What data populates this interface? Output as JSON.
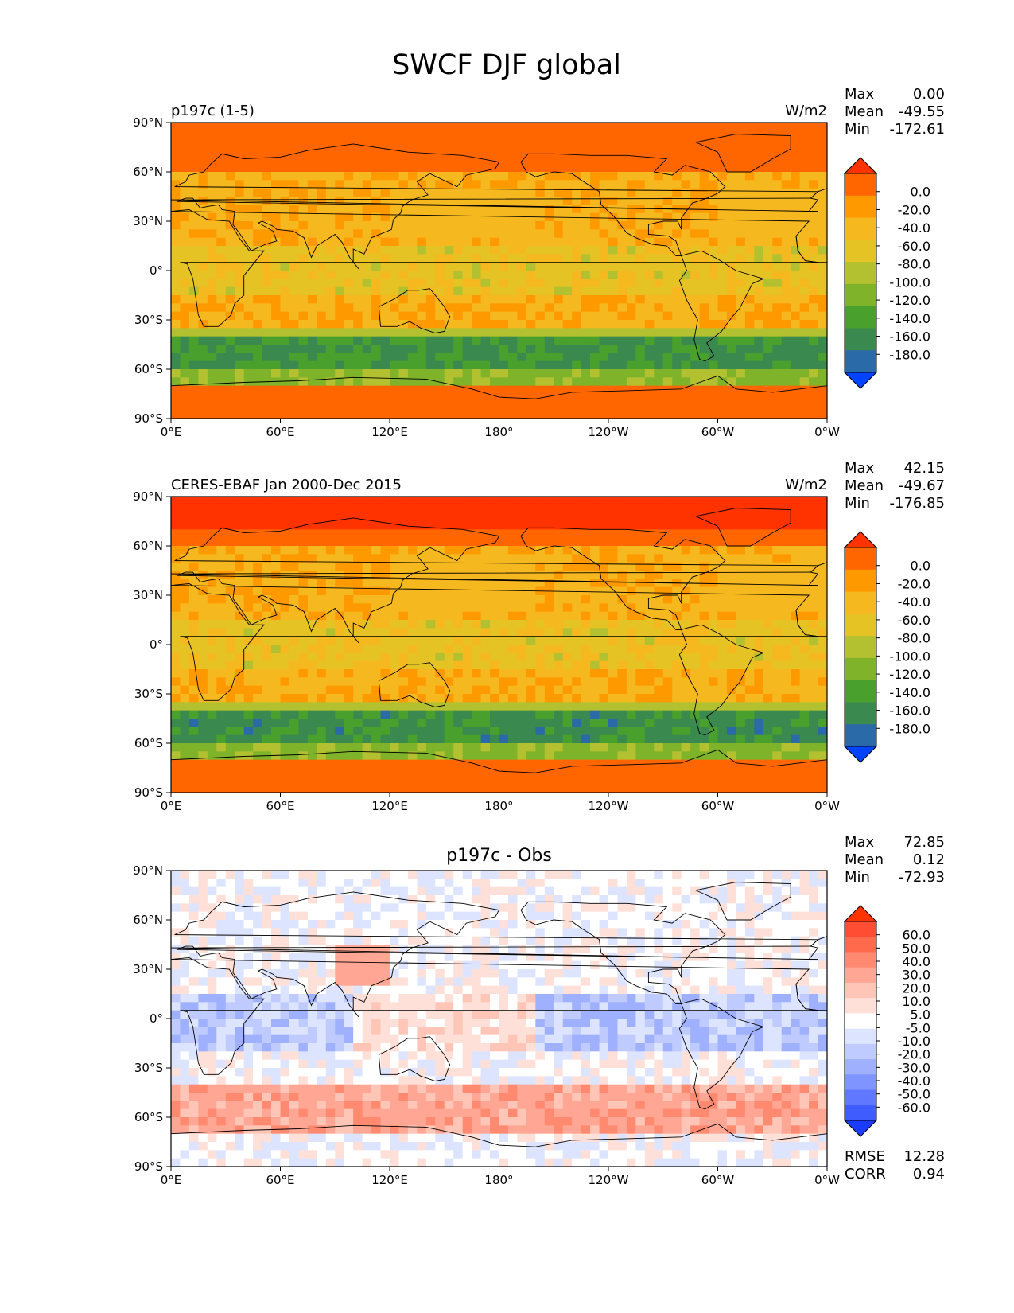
{
  "title": "SWCF DJF global",
  "lat_ticks": [
    "90°N",
    "60°N",
    "30°N",
    "0°",
    "30°S",
    "60°S",
    "90°S"
  ],
  "lon_ticks": [
    "0°E",
    "60°E",
    "120°E",
    "180°",
    "120°W",
    "60°W",
    "0°W"
  ],
  "panels": [
    {
      "title": "",
      "left_label": "p197c (1-5)",
      "right_label": "W/m2",
      "stats": [
        {
          "label": "Max",
          "value": "0.00"
        },
        {
          "label": "Mean",
          "value": "-49.55"
        },
        {
          "label": "Min",
          "value": "-172.61"
        }
      ],
      "colorbar": {
        "labels": [
          "0.0",
          "-20.0",
          "-40.0",
          "-60.0",
          "-80.0",
          "-100.0",
          "-120.0",
          "-140.0",
          "-160.0",
          "-180.0"
        ],
        "colors": [
          "#ff3300",
          "#ff6600",
          "#ff9900",
          "#f5b81e",
          "#e5c325",
          "#b3c130",
          "#7fb32a",
          "#4aa02c",
          "#3a8a50",
          "#2b6aa8",
          "#0044ff"
        ],
        "upper_extend": "#ff3300",
        "lower_extend": "#0044ff"
      },
      "regime": "model"
    },
    {
      "title": "",
      "left_label": "CERES-EBAF Jan 2000-Dec 2015",
      "right_label": "W/m2",
      "stats": [
        {
          "label": "Max",
          "value": "42.15"
        },
        {
          "label": "Mean",
          "value": "-49.67"
        },
        {
          "label": "Min",
          "value": "-176.85"
        }
      ],
      "colorbar": {
        "labels": [
          "0.0",
          "-20.0",
          "-40.0",
          "-60.0",
          "-80.0",
          "-100.0",
          "-120.0",
          "-140.0",
          "-160.0",
          "-180.0"
        ],
        "colors": [
          "#ff3300",
          "#ff6600",
          "#ff9900",
          "#f5b81e",
          "#e5c325",
          "#b3c130",
          "#7fb32a",
          "#4aa02c",
          "#3a8a50",
          "#2b6aa8",
          "#0044ff"
        ],
        "upper_extend": "#ff3300",
        "lower_extend": "#0044ff"
      },
      "regime": "obs"
    },
    {
      "title": "p197c - Obs",
      "left_label": "",
      "right_label": "",
      "stats": [
        {
          "label": "Max",
          "value": "72.85"
        },
        {
          "label": "Mean",
          "value": "0.12"
        },
        {
          "label": "Min",
          "value": "-72.93"
        }
      ],
      "colorbar": {
        "labels": [
          "60.0",
          "50.0",
          "40.0",
          "30.0",
          "20.0",
          "10.0",
          "5.0",
          "-5.0",
          "-10.0",
          "-20.0",
          "-30.0",
          "-40.0",
          "-50.0",
          "-60.0"
        ],
        "colors": [
          "#ff3300",
          "#ff4d33",
          "#ff6a4d",
          "#ff8a70",
          "#ffa794",
          "#ffc6b8",
          "#ffe0d8",
          "#ffffff",
          "#dde4ff",
          "#bfcbff",
          "#9fb0ff",
          "#7f94ff",
          "#5f78ff",
          "#3f5cff",
          "#1a3cff"
        ],
        "upper_extend": "#ff3300",
        "lower_extend": "#1a3cff"
      },
      "footer_stats": [
        {
          "label": "RMSE",
          "value": "12.28"
        },
        {
          "label": "CORR",
          "value": "0.94"
        }
      ],
      "regime": "diff"
    }
  ]
}
